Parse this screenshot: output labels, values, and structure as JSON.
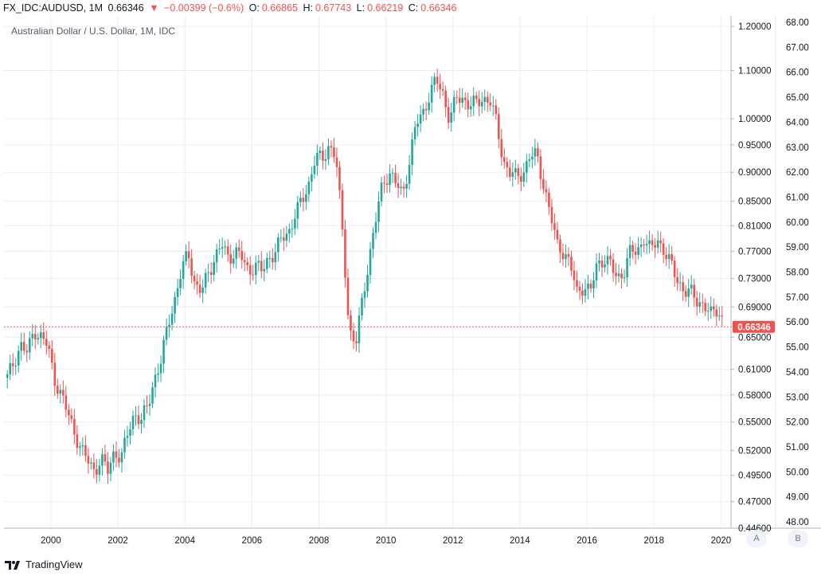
{
  "header": {
    "symbol": "FX_IDC:AUDUSD, 1M",
    "last": "0.66346",
    "change": "−0.00399 (−0.6%)",
    "o_label": "O:",
    "o_val": "0.66865",
    "h_label": "H:",
    "h_val": "0.67743",
    "l_label": "L:",
    "l_val": "0.66219",
    "c_label": "C:",
    "c_val": "0.66346"
  },
  "left_scale_labels": [
    "1.20000",
    "1.10000",
    "1.00000",
    "0.95000",
    "0.90000",
    "0.85000",
    "0.81000",
    "0.77000",
    "0.73000",
    "0.69000",
    "0.65000",
    "0.61000",
    "0.58000",
    "0.55000",
    "0.52000",
    "0.49500",
    "0.47000",
    "0.44600"
  ],
  "right_scale_labels": [
    "68.00",
    "67.00",
    "66.00",
    "65.00",
    "64.00",
    "63.00",
    "62.00",
    "61.00",
    "60.00",
    "59.00",
    "58.00",
    "57.00",
    "56.00",
    "55.00",
    "54.00",
    "53.00",
    "52.00",
    "51.00",
    "50.00",
    "49.00",
    "48.00"
  ],
  "scale_buttons": {
    "a": "A",
    "b": "B"
  },
  "branding": {
    "name": "TradingView"
  },
  "colors": {
    "up": "#26a69a",
    "down": "#ef5350",
    "grid": "#e9edf2",
    "price_line": "#ef5350"
  },
  "chart_data": {
    "type": "candlestick",
    "title": "Australian Dollar / U.S. Dollar, 1M, IDC",
    "scale": "log",
    "xlabel": "",
    "ylabel": "",
    "x_ticks": [
      "2000",
      "2002",
      "2004",
      "2006",
      "2008",
      "2010",
      "2012",
      "2014",
      "2016",
      "2018",
      "2020"
    ],
    "x_range": [
      1998.6,
      2020.3
    ],
    "ylim": [
      0.446,
      1.225
    ],
    "last_price_label": "0.66346",
    "last_price": 0.66346,
    "grid": true,
    "series": {
      "t": [
        1998.7,
        1998.9,
        1999.1,
        1999.3,
        1999.5,
        1999.7,
        1999.9,
        2000.1,
        2000.3,
        2000.5,
        2000.7,
        2000.9,
        2001.1,
        2001.3,
        2001.5,
        2001.7,
        2001.9,
        2002.1,
        2002.3,
        2002.5,
        2002.7,
        2002.9,
        2003.1,
        2003.3,
        2003.5,
        2003.7,
        2003.9,
        2004.1,
        2004.3,
        2004.5,
        2004.7,
        2004.9,
        2005.1,
        2005.3,
        2005.5,
        2005.7,
        2005.9,
        2006.1,
        2006.3,
        2006.5,
        2006.7,
        2006.9,
        2007.1,
        2007.3,
        2007.5,
        2007.7,
        2007.9,
        2008.1,
        2008.3,
        2008.5,
        2008.7,
        2008.9,
        2009.1,
        2009.3,
        2009.5,
        2009.7,
        2009.9,
        2010.1,
        2010.3,
        2010.5,
        2010.7,
        2010.9,
        2011.1,
        2011.3,
        2011.5,
        2011.7,
        2011.9,
        2012.1,
        2012.3,
        2012.5,
        2012.7,
        2012.9,
        2013.1,
        2013.3,
        2013.5,
        2013.7,
        2013.9,
        2014.1,
        2014.3,
        2014.5,
        2014.7,
        2014.9,
        2015.1,
        2015.3,
        2015.5,
        2015.7,
        2015.9,
        2016.1,
        2016.3,
        2016.5,
        2016.7,
        2016.9,
        2017.1,
        2017.3,
        2017.5,
        2017.7,
        2017.9,
        2018.1,
        2018.3,
        2018.5,
        2018.7,
        2018.9,
        2019.1,
        2019.3,
        2019.5,
        2019.7,
        2019.9,
        2020.1
      ],
      "close": [
        0.6,
        0.62,
        0.64,
        0.63,
        0.66,
        0.65,
        0.64,
        0.6,
        0.58,
        0.56,
        0.54,
        0.52,
        0.51,
        0.5,
        0.51,
        0.5,
        0.52,
        0.51,
        0.54,
        0.56,
        0.55,
        0.57,
        0.6,
        0.62,
        0.67,
        0.7,
        0.74,
        0.77,
        0.72,
        0.71,
        0.74,
        0.76,
        0.78,
        0.76,
        0.77,
        0.76,
        0.74,
        0.75,
        0.74,
        0.76,
        0.77,
        0.79,
        0.8,
        0.83,
        0.85,
        0.88,
        0.93,
        0.92,
        0.95,
        0.93,
        0.8,
        0.66,
        0.64,
        0.7,
        0.76,
        0.82,
        0.88,
        0.9,
        0.88,
        0.86,
        0.92,
        0.99,
        1.01,
        1.05,
        1.08,
        1.05,
        1.0,
        1.04,
        1.04,
        1.03,
        1.03,
        1.04,
        1.04,
        0.99,
        0.92,
        0.9,
        0.89,
        0.9,
        0.93,
        0.93,
        0.88,
        0.83,
        0.78,
        0.77,
        0.75,
        0.71,
        0.72,
        0.71,
        0.75,
        0.76,
        0.75,
        0.73,
        0.74,
        0.77,
        0.77,
        0.79,
        0.77,
        0.79,
        0.77,
        0.75,
        0.73,
        0.71,
        0.71,
        0.7,
        0.69,
        0.68,
        0.69,
        0.66346
      ]
    }
  }
}
